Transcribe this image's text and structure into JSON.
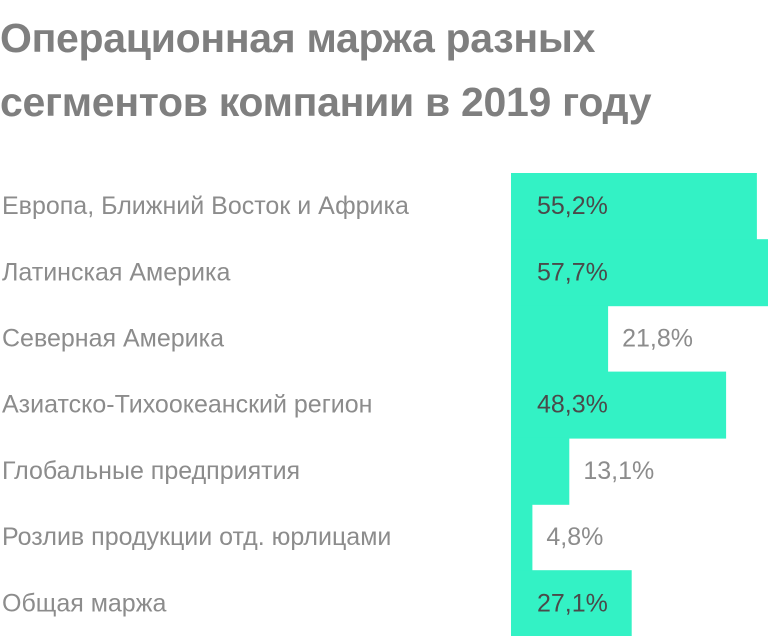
{
  "chart_data": {
    "type": "bar",
    "orientation": "horizontal",
    "title": "Операционная маржа разных сегментов компании в 2019 году",
    "categories": [
      "Европа, Ближний Восток и Африка",
      "Латинская Америка",
      "Северная Америка",
      "Азиатско-Тихоокеанский регион",
      "Глобальные предприятия",
      "Розлив продукции отд. юрлицами",
      "Общая маржа"
    ],
    "values": [
      55.2,
      57.7,
      21.8,
      48.3,
      13.1,
      4.8,
      27.1
    ],
    "value_labels": [
      "55,2%",
      "57,7%",
      "21,8%",
      "48,3%",
      "13,1%",
      "4,8%",
      "27,1%"
    ],
    "xlim": [
      0,
      57.7
    ],
    "grid": false,
    "bar_color": "#33f2c5",
    "title_color": "#7f7f7f",
    "label_color": "#8c8c8c"
  }
}
